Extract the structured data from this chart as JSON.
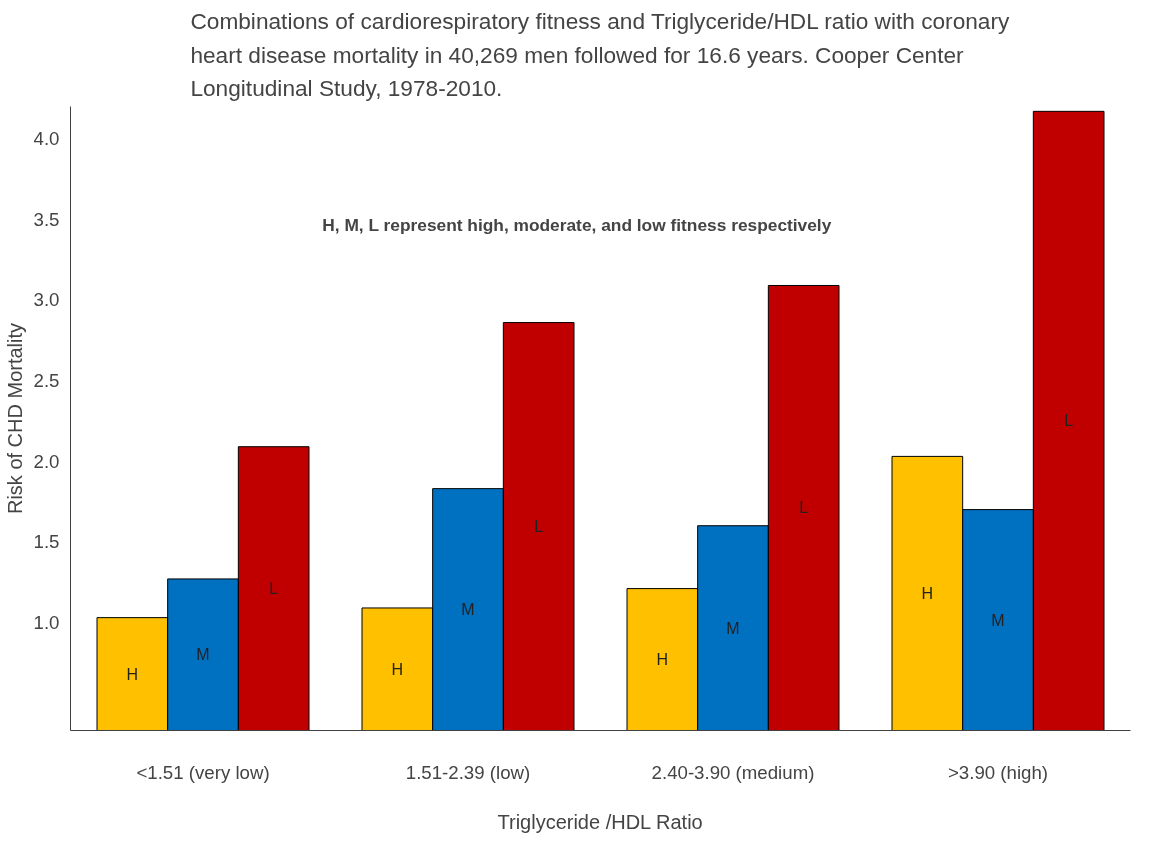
{
  "chart_data": {
    "type": "bar",
    "title": "Combinations of cardiorespiratory fitness and Triglyceride/HDL ratio with coronary heart disease mortality in 40,269 men followed for 16.6 years. Cooper Center Longitudinal Study, 1978-2010.",
    "xlabel": "Triglyceride /HDL Ratio",
    "ylabel": "Risk of CHD Mortality",
    "annotations": [
      "H, M, L represent high, moderate, and low fitness respectively"
    ],
    "categories": [
      "<1.51 (very low)",
      "1.51-2.39 (low)",
      "2.40-3.90 (medium)",
      ">3.90 (high)"
    ],
    "series": [
      {
        "color": "#ffc000",
        "values": [
          1.03,
          1.09,
          1.21,
          2.03
        ],
        "value_labels": [
          "H",
          "H",
          "H",
          "H"
        ]
      },
      {
        "color": "#0070c0",
        "values": [
          1.27,
          1.83,
          1.6,
          1.7
        ],
        "value_labels": [
          "M",
          "M",
          "M",
          "M"
        ]
      },
      {
        "color": "#c00000",
        "values": [
          2.09,
          2.86,
          3.09,
          4.17
        ],
        "value_labels": [
          "L",
          "L",
          "L",
          "L"
        ]
      }
    ],
    "ylim": [
      0.33,
      4.2
    ],
    "yticks": [
      {
        "value": 1,
        "label": "1.0"
      },
      {
        "value": 1.5,
        "label": "1.5"
      },
      {
        "value": 2,
        "label": "2.0"
      },
      {
        "value": 2.5,
        "label": "2.5"
      },
      {
        "value": 3,
        "label": "3.0"
      },
      {
        "value": 3.5,
        "label": "3.5"
      },
      {
        "value": 4,
        "label": "4.0"
      }
    ],
    "grid": false
  }
}
